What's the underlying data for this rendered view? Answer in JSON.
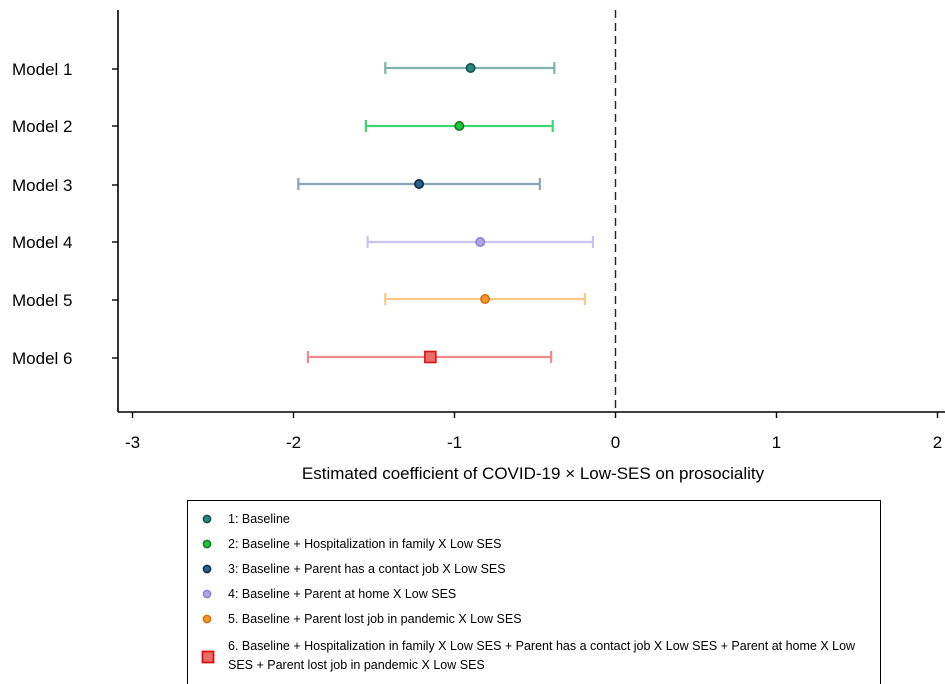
{
  "chart_data": {
    "type": "scatter",
    "subtype": "coefficient-plot-with-confidence-intervals",
    "xlabel": "Estimated coefficient of COVID-19 × Low-SES on prosociality",
    "ylabel": "",
    "xlim": [
      -3.1,
      2.05
    ],
    "x_ticks": [
      -3,
      -2,
      -1,
      0,
      1,
      2
    ],
    "x_tick_labels": [
      "-3",
      "-2",
      "-1",
      "0",
      "1",
      "2"
    ],
    "reference_line": {
      "x": 0,
      "style": "dashed"
    },
    "grid": false,
    "legend_position": "below",
    "models": [
      {
        "label": "Model 1",
        "estimate": -0.9,
        "ci_low": -1.43,
        "ci_high": -0.38,
        "legend": "1: Baseline",
        "color": "#7fb3ad",
        "marker_fill": "#2a8a7e",
        "marker_edge": "#0f4f48",
        "marker": "circle"
      },
      {
        "label": "Model 2",
        "estimate": -0.97,
        "ci_low": -1.55,
        "ci_high": -0.39,
        "legend": "2: Baseline + Hospitalization in family X Low SES",
        "color": "#3ed673",
        "marker_fill": "#22c43c",
        "marker_edge": "#0e7a22",
        "marker": "circle"
      },
      {
        "label": "Model 3",
        "estimate": -1.22,
        "ci_low": -1.97,
        "ci_high": -0.47,
        "legend": "3: Baseline + Parent has a contact job X Low SES",
        "color": "#8aa6b6",
        "marker_fill": "#2a5f87",
        "marker_edge": "#0d2c47",
        "marker": "circle"
      },
      {
        "label": "Model 4",
        "estimate": -0.84,
        "ci_low": -1.54,
        "ci_high": -0.14,
        "legend": "4: Baseline + Parent at home X Low SES",
        "color": "#c8c4ec",
        "marker_fill": "#b0a6e6",
        "marker_edge": "#8c82cc",
        "marker": "circle"
      },
      {
        "label": "Model 5",
        "estimate": -0.81,
        "ci_low": -1.43,
        "ci_high": -0.19,
        "legend": "5. Baseline + Parent lost job in pandemic X Low SES",
        "color": "#f9c98a",
        "marker_fill": "#f5982e",
        "marker_edge": "#d4700c",
        "marker": "circle"
      },
      {
        "label": "Model 6",
        "estimate": -1.15,
        "ci_low": -1.91,
        "ci_high": -0.4,
        "legend": "6. Baseline + Hospitalization in family X Low SES + Parent has a contact job X Low SES + Parent at home X Low SES + Parent lost job in pandemic X Low SES",
        "color": "#f08a8a",
        "marker_fill": "#f06a6a",
        "marker_edge": "#e01010",
        "marker": "square"
      }
    ]
  }
}
